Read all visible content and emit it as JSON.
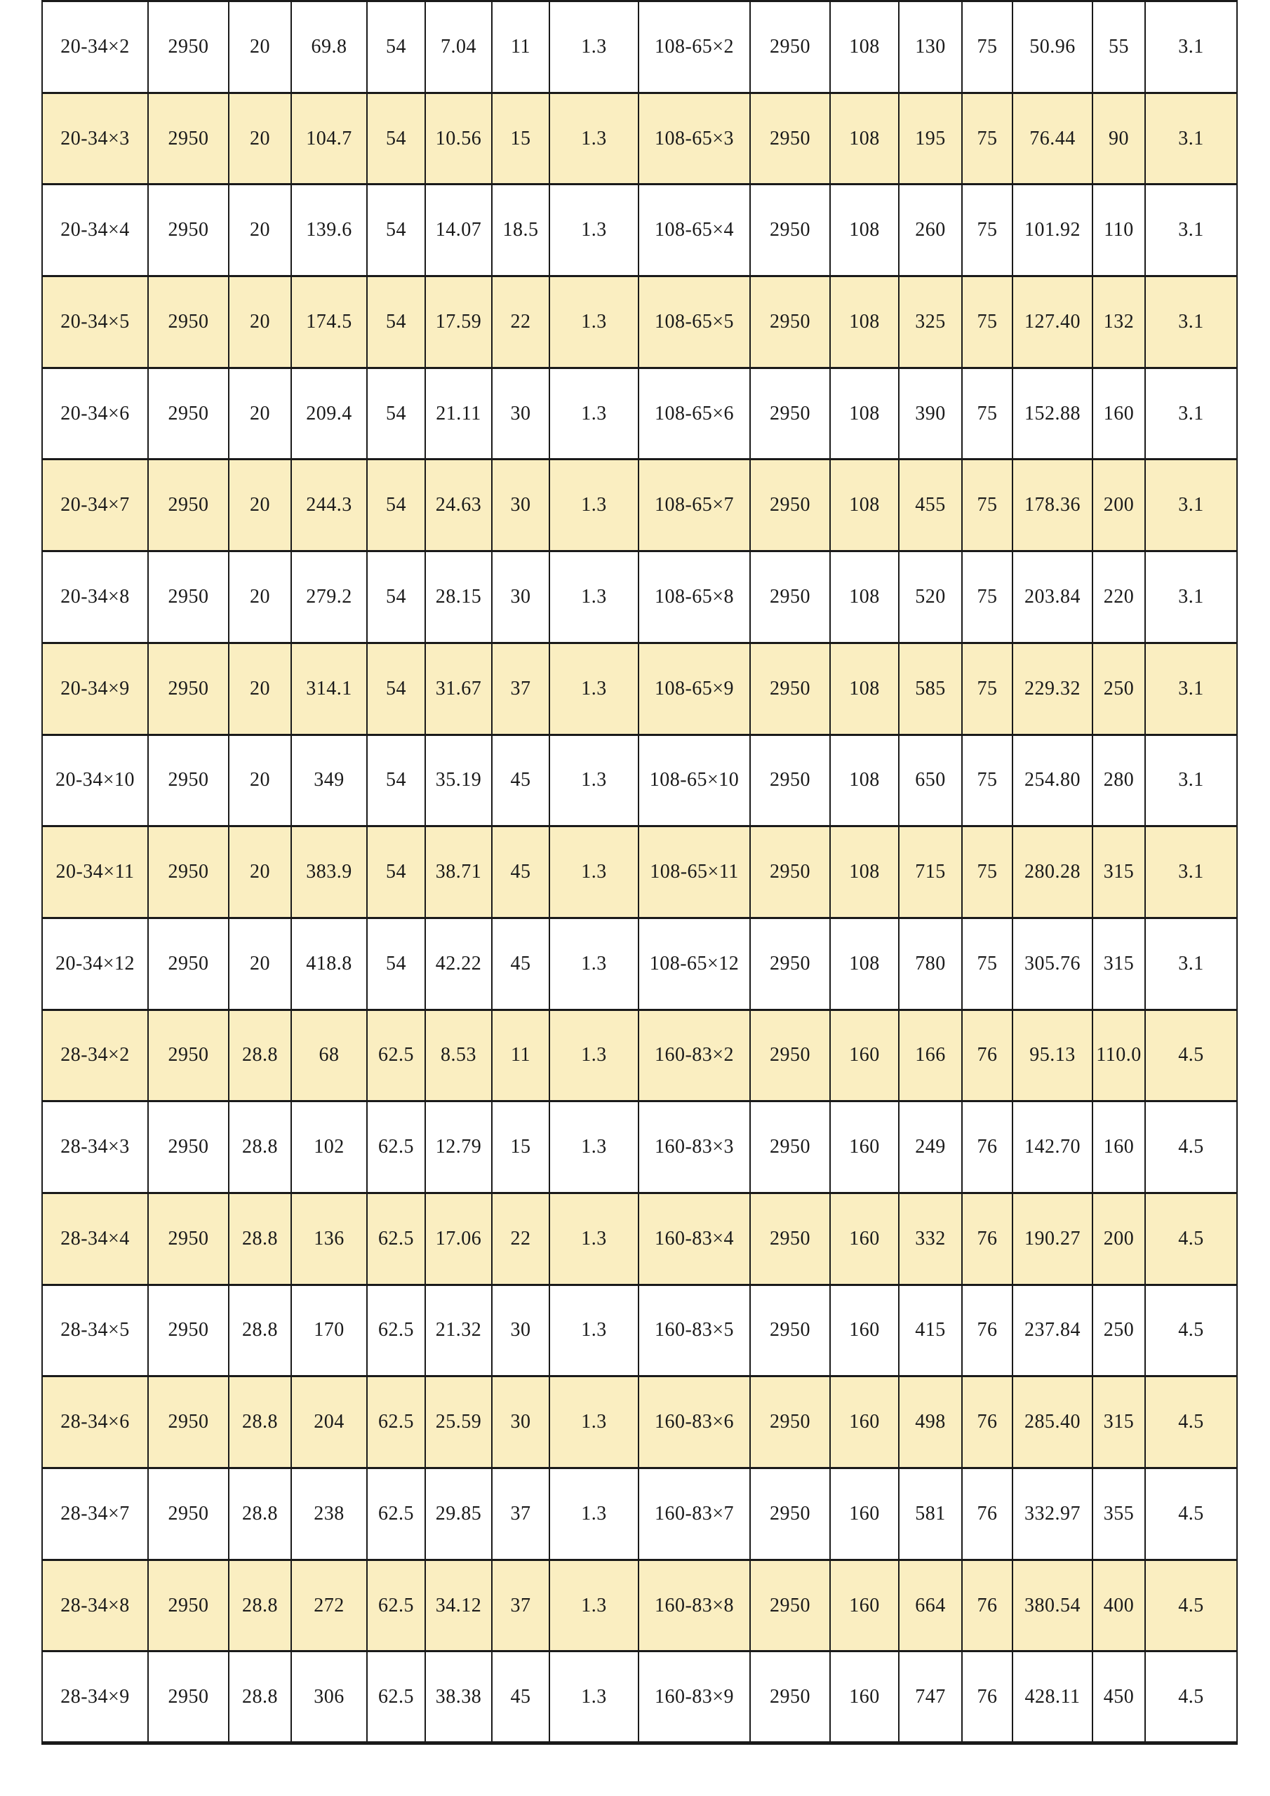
{
  "colors": {
    "page_bg": "#ffffff",
    "alt_row_bg": "#faeec1",
    "grid": "#1a1a1a",
    "text": "#1a1a1a"
  },
  "table": {
    "rows": [
      {
        "shaded": false,
        "cells": [
          "20-34×2",
          "2950",
          "20",
          "69.8",
          "54",
          "7.04",
          "11",
          "1.3",
          "108-65×2",
          "2950",
          "108",
          "130",
          "75",
          "50.96",
          "55",
          "3.1"
        ]
      },
      {
        "shaded": true,
        "cells": [
          "20-34×3",
          "2950",
          "20",
          "104.7",
          "54",
          "10.56",
          "15",
          "1.3",
          "108-65×3",
          "2950",
          "108",
          "195",
          "75",
          "76.44",
          "90",
          "3.1"
        ]
      },
      {
        "shaded": false,
        "cells": [
          "20-34×4",
          "2950",
          "20",
          "139.6",
          "54",
          "14.07",
          "18.5",
          "1.3",
          "108-65×4",
          "2950",
          "108",
          "260",
          "75",
          "101.92",
          "110",
          "3.1"
        ]
      },
      {
        "shaded": true,
        "cells": [
          "20-34×5",
          "2950",
          "20",
          "174.5",
          "54",
          "17.59",
          "22",
          "1.3",
          "108-65×5",
          "2950",
          "108",
          "325",
          "75",
          "127.40",
          "132",
          "3.1"
        ]
      },
      {
        "shaded": false,
        "cells": [
          "20-34×6",
          "2950",
          "20",
          "209.4",
          "54",
          "21.11",
          "30",
          "1.3",
          "108-65×6",
          "2950",
          "108",
          "390",
          "75",
          "152.88",
          "160",
          "3.1"
        ]
      },
      {
        "shaded": true,
        "cells": [
          "20-34×7",
          "2950",
          "20",
          "244.3",
          "54",
          "24.63",
          "30",
          "1.3",
          "108-65×7",
          "2950",
          "108",
          "455",
          "75",
          "178.36",
          "200",
          "3.1"
        ]
      },
      {
        "shaded": false,
        "cells": [
          "20-34×8",
          "2950",
          "20",
          "279.2",
          "54",
          "28.15",
          "30",
          "1.3",
          "108-65×8",
          "2950",
          "108",
          "520",
          "75",
          "203.84",
          "220",
          "3.1"
        ]
      },
      {
        "shaded": true,
        "cells": [
          "20-34×9",
          "2950",
          "20",
          "314.1",
          "54",
          "31.67",
          "37",
          "1.3",
          "108-65×9",
          "2950",
          "108",
          "585",
          "75",
          "229.32",
          "250",
          "3.1"
        ]
      },
      {
        "shaded": false,
        "cells": [
          "20-34×10",
          "2950",
          "20",
          "349",
          "54",
          "35.19",
          "45",
          "1.3",
          "108-65×10",
          "2950",
          "108",
          "650",
          "75",
          "254.80",
          "280",
          "3.1"
        ]
      },
      {
        "shaded": true,
        "cells": [
          "20-34×11",
          "2950",
          "20",
          "383.9",
          "54",
          "38.71",
          "45",
          "1.3",
          "108-65×11",
          "2950",
          "108",
          "715",
          "75",
          "280.28",
          "315",
          "3.1"
        ]
      },
      {
        "shaded": false,
        "cells": [
          "20-34×12",
          "2950",
          "20",
          "418.8",
          "54",
          "42.22",
          "45",
          "1.3",
          "108-65×12",
          "2950",
          "108",
          "780",
          "75",
          "305.76",
          "315",
          "3.1"
        ]
      },
      {
        "shaded": true,
        "cells": [
          "28-34×2",
          "2950",
          "28.8",
          "68",
          "62.5",
          "8.53",
          "11",
          "1.3",
          "160-83×2",
          "2950",
          "160",
          "166",
          "76",
          "95.13",
          "110.0",
          "4.5"
        ]
      },
      {
        "shaded": false,
        "cells": [
          "28-34×3",
          "2950",
          "28.8",
          "102",
          "62.5",
          "12.79",
          "15",
          "1.3",
          "160-83×3",
          "2950",
          "160",
          "249",
          "76",
          "142.70",
          "160",
          "4.5"
        ]
      },
      {
        "shaded": true,
        "cells": [
          "28-34×4",
          "2950",
          "28.8",
          "136",
          "62.5",
          "17.06",
          "22",
          "1.3",
          "160-83×4",
          "2950",
          "160",
          "332",
          "76",
          "190.27",
          "200",
          "4.5"
        ]
      },
      {
        "shaded": false,
        "cells": [
          "28-34×5",
          "2950",
          "28.8",
          "170",
          "62.5",
          "21.32",
          "30",
          "1.3",
          "160-83×5",
          "2950",
          "160",
          "415",
          "76",
          "237.84",
          "250",
          "4.5"
        ]
      },
      {
        "shaded": true,
        "cells": [
          "28-34×6",
          "2950",
          "28.8",
          "204",
          "62.5",
          "25.59",
          "30",
          "1.3",
          "160-83×6",
          "2950",
          "160",
          "498",
          "76",
          "285.40",
          "315",
          "4.5"
        ]
      },
      {
        "shaded": false,
        "cells": [
          "28-34×7",
          "2950",
          "28.8",
          "238",
          "62.5",
          "29.85",
          "37",
          "1.3",
          "160-83×7",
          "2950",
          "160",
          "581",
          "76",
          "332.97",
          "355",
          "4.5"
        ]
      },
      {
        "shaded": true,
        "cells": [
          "28-34×8",
          "2950",
          "28.8",
          "272",
          "62.5",
          "34.12",
          "37",
          "1.3",
          "160-83×8",
          "2950",
          "160",
          "664",
          "76",
          "380.54",
          "400",
          "4.5"
        ]
      },
      {
        "shaded": false,
        "cells": [
          "28-34×9",
          "2950",
          "28.8",
          "306",
          "62.5",
          "38.38",
          "45",
          "1.3",
          "160-83×9",
          "2950",
          "160",
          "747",
          "76",
          "428.11",
          "450",
          "4.5"
        ]
      }
    ]
  }
}
